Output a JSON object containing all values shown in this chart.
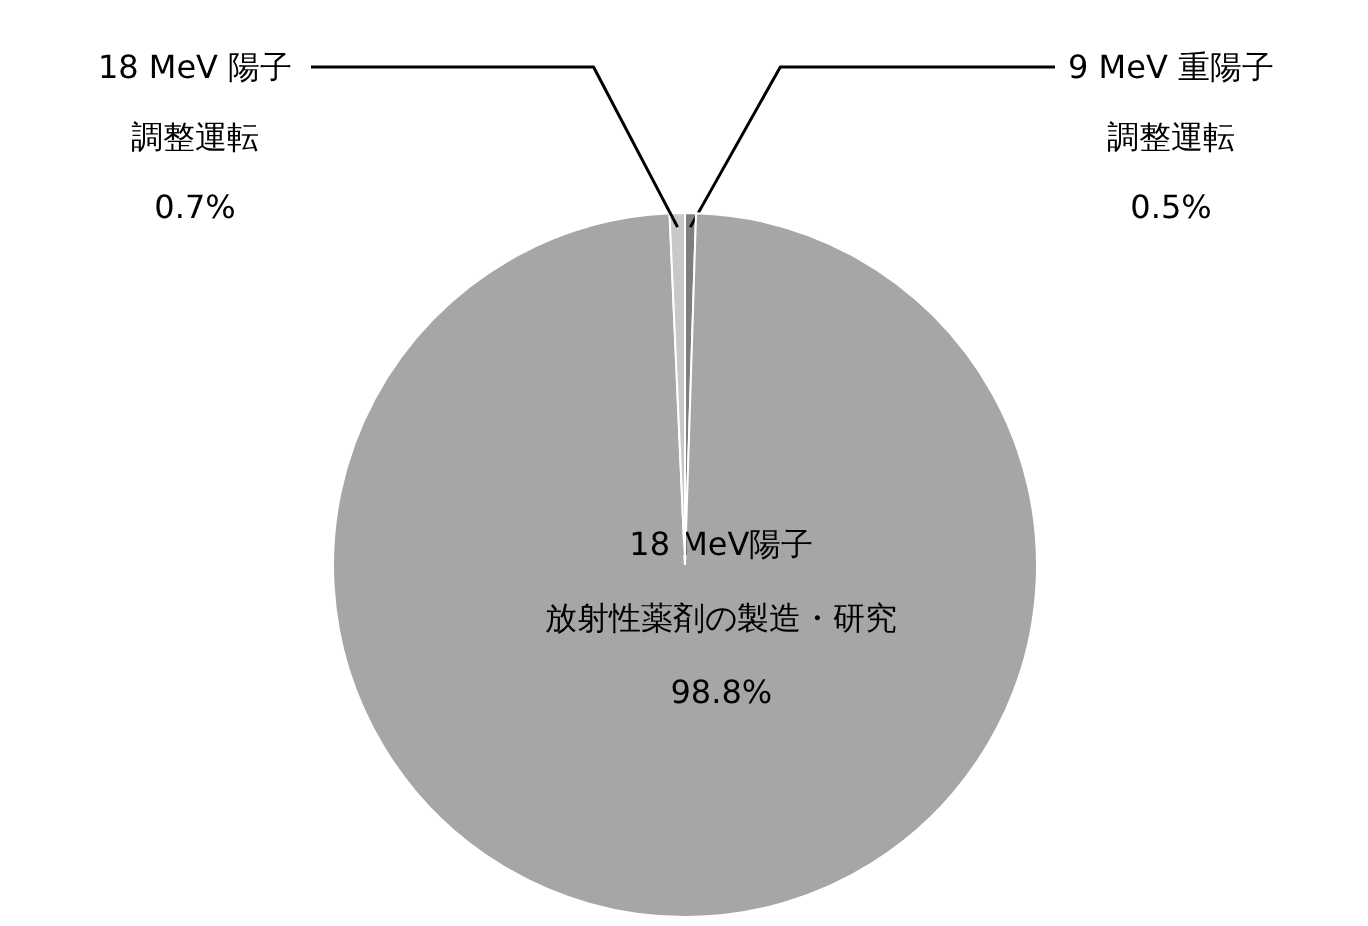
{
  "chart_data": {
    "type": "pie",
    "categories": [
      "9 MeV 重陽子調整運転",
      "18 MeV陽子放射性薬剤の製造・研究",
      "18 MeV 陽子調整運転"
    ],
    "values": [
      0.5,
      98.8,
      0.7
    ],
    "colors": [
      "#7f7f7f",
      "#a6a6a6",
      "#c8c8c8"
    ],
    "value_labels": [
      "0.5%",
      "98.8%",
      "0.7%"
    ]
  }
}
